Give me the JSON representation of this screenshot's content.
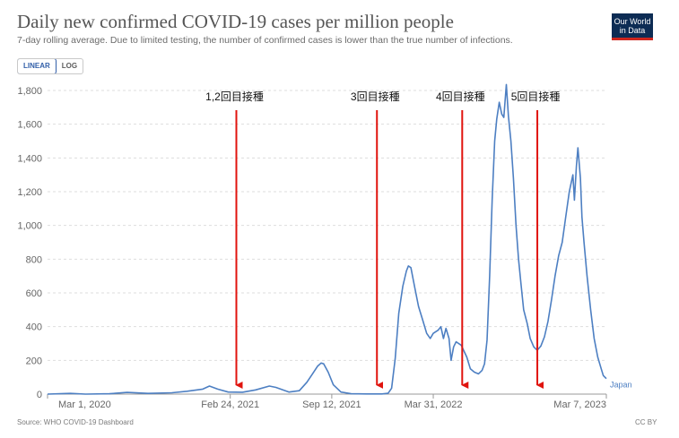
{
  "header": {
    "title": "Daily new confirmed COVID-19 cases per million people",
    "subtitle": "7-day rolling average. Due to limited testing, the number of confirmed cases is lower than the true number of infections.",
    "logo_line1": "Our World",
    "logo_line2": "in Data"
  },
  "scale_toggle": {
    "linear_label": "LINEAR",
    "log_label": "LOG",
    "selected": "LINEAR"
  },
  "footer": {
    "source": "Source: WHO COVID-19 Dashboard",
    "license": "CC BY"
  },
  "colors": {
    "series": "#4d7fc2",
    "arrow": "#e0140e",
    "grid": "#dddddd",
    "text": "#666666"
  },
  "chart_data": {
    "type": "line",
    "title": "Daily new confirmed COVID-19 cases per million people",
    "xlabel": "",
    "ylabel": "",
    "ylim": [
      0,
      1800
    ],
    "xlim": [
      "2020-03-01",
      "2023-03-07"
    ],
    "yticks": [
      0,
      200,
      400,
      600,
      800,
      1000,
      1200,
      1400,
      1600,
      1800
    ],
    "ytick_labels": [
      "0",
      "200",
      "400",
      "600",
      "800",
      "1,000",
      "1,200",
      "1,400",
      "1,600",
      "1,800"
    ],
    "xticks": [
      {
        "date": "2020-03-01",
        "label": "Mar 1, 2020"
      },
      {
        "date": "2021-02-24",
        "label": "Feb 24, 2021"
      },
      {
        "date": "2021-09-12",
        "label": "Sep 12, 2021"
      },
      {
        "date": "2022-03-31",
        "label": "Mar 31, 2022"
      },
      {
        "date": "2023-03-07",
        "label": "Mar 7, 2023"
      }
    ],
    "grid": "horizontal dashed",
    "series": [
      {
        "name": "Japan",
        "points": [
          [
            "2020-03-01",
            0
          ],
          [
            "2020-04-01",
            3
          ],
          [
            "2020-04-15",
            4
          ],
          [
            "2020-05-15",
            0
          ],
          [
            "2020-07-01",
            2
          ],
          [
            "2020-08-05",
            10
          ],
          [
            "2020-09-15",
            4
          ],
          [
            "2020-11-01",
            8
          ],
          [
            "2020-12-01",
            17
          ],
          [
            "2021-01-01",
            30
          ],
          [
            "2021-01-14",
            48
          ],
          [
            "2021-01-30",
            30
          ],
          [
            "2021-02-20",
            12
          ],
          [
            "2021-03-20",
            11
          ],
          [
            "2021-04-15",
            25
          ],
          [
            "2021-05-12",
            48
          ],
          [
            "2021-05-25",
            40
          ],
          [
            "2021-06-20",
            12
          ],
          [
            "2021-07-10",
            20
          ],
          [
            "2021-07-25",
            70
          ],
          [
            "2021-08-05",
            120
          ],
          [
            "2021-08-15",
            165
          ],
          [
            "2021-08-22",
            184
          ],
          [
            "2021-08-27",
            180
          ],
          [
            "2021-09-05",
            130
          ],
          [
            "2021-09-15",
            55
          ],
          [
            "2021-09-30",
            12
          ],
          [
            "2021-10-20",
            2
          ],
          [
            "2021-11-20",
            1
          ],
          [
            "2021-12-20",
            1
          ],
          [
            "2022-01-01",
            5
          ],
          [
            "2022-01-08",
            35
          ],
          [
            "2022-01-15",
            210
          ],
          [
            "2022-01-22",
            480
          ],
          [
            "2022-01-30",
            640
          ],
          [
            "2022-02-06",
            730
          ],
          [
            "2022-02-10",
            760
          ],
          [
            "2022-02-15",
            750
          ],
          [
            "2022-02-22",
            640
          ],
          [
            "2022-03-02",
            520
          ],
          [
            "2022-03-10",
            440
          ],
          [
            "2022-03-18",
            360
          ],
          [
            "2022-03-25",
            330
          ],
          [
            "2022-03-31",
            360
          ],
          [
            "2022-04-10",
            380
          ],
          [
            "2022-04-15",
            400
          ],
          [
            "2022-04-20",
            330
          ],
          [
            "2022-04-25",
            390
          ],
          [
            "2022-05-01",
            330
          ],
          [
            "2022-05-05",
            200
          ],
          [
            "2022-05-10",
            280
          ],
          [
            "2022-05-15",
            310
          ],
          [
            "2022-05-25",
            290
          ],
          [
            "2022-06-05",
            220
          ],
          [
            "2022-06-12",
            150
          ],
          [
            "2022-06-20",
            130
          ],
          [
            "2022-06-28",
            120
          ],
          [
            "2022-07-05",
            140
          ],
          [
            "2022-07-10",
            180
          ],
          [
            "2022-07-15",
            320
          ],
          [
            "2022-07-20",
            700
          ],
          [
            "2022-07-25",
            1150
          ],
          [
            "2022-07-30",
            1500
          ],
          [
            "2022-08-03",
            1630
          ],
          [
            "2022-08-08",
            1730
          ],
          [
            "2022-08-13",
            1660
          ],
          [
            "2022-08-17",
            1640
          ],
          [
            "2022-08-22",
            1835
          ],
          [
            "2022-08-26",
            1650
          ],
          [
            "2022-08-31",
            1500
          ],
          [
            "2022-09-05",
            1280
          ],
          [
            "2022-09-10",
            1000
          ],
          [
            "2022-09-15",
            800
          ],
          [
            "2022-09-20",
            650
          ],
          [
            "2022-09-25",
            500
          ],
          [
            "2022-10-02",
            420
          ],
          [
            "2022-10-08",
            330
          ],
          [
            "2022-10-15",
            280
          ],
          [
            "2022-10-22",
            260
          ],
          [
            "2022-10-29",
            285
          ],
          [
            "2022-11-05",
            340
          ],
          [
            "2022-11-12",
            430
          ],
          [
            "2022-11-19",
            560
          ],
          [
            "2022-11-26",
            700
          ],
          [
            "2022-12-03",
            820
          ],
          [
            "2022-12-10",
            900
          ],
          [
            "2022-12-17",
            1050
          ],
          [
            "2022-12-24",
            1200
          ],
          [
            "2022-12-31",
            1300
          ],
          [
            "2023-01-03",
            1150
          ],
          [
            "2023-01-07",
            1350
          ],
          [
            "2023-01-10",
            1460
          ],
          [
            "2023-01-15",
            1280
          ],
          [
            "2023-01-18",
            1050
          ],
          [
            "2023-01-22",
            900
          ],
          [
            "2023-01-28",
            700
          ],
          [
            "2023-02-04",
            500
          ],
          [
            "2023-02-11",
            330
          ],
          [
            "2023-02-18",
            220
          ],
          [
            "2023-02-25",
            150
          ],
          [
            "2023-03-01",
            110
          ],
          [
            "2023-03-07",
            92
          ]
        ]
      }
    ],
    "annotations": [
      {
        "label": "1,2回目接種",
        "date": "2021-03-08"
      },
      {
        "label": "3回目接種",
        "date": "2021-12-10"
      },
      {
        "label": "4回目接種",
        "date": "2022-05-27"
      },
      {
        "label": "5回目接種",
        "date": "2022-10-22"
      }
    ]
  }
}
